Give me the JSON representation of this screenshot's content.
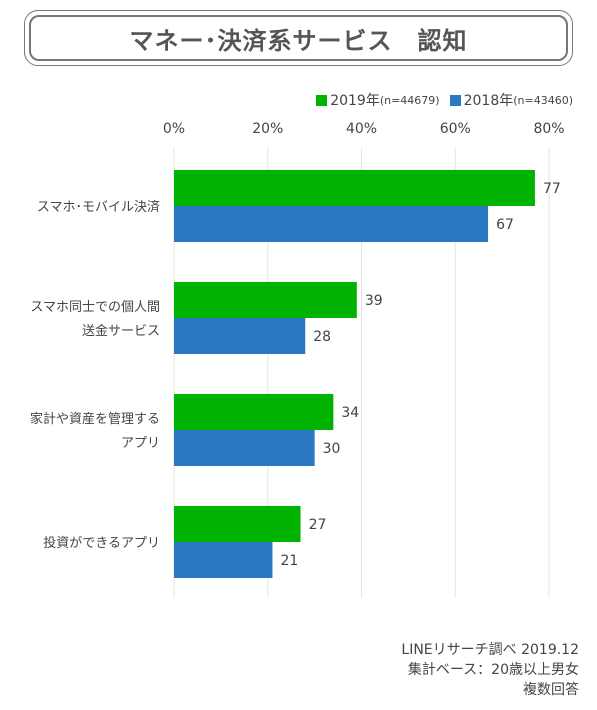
{
  "title": "マネー･決済系サービス　認知",
  "legend": [
    {
      "label": "2019年",
      "n": "(n=44679)",
      "color": "#00b300"
    },
    {
      "label": "2018年",
      "n": "(n=43460)",
      "color": "#2b78c2"
    }
  ],
  "footer": {
    "line1": "LINEリサーチ調べ 2019.12",
    "line2": "集計ベース：20歳以上男女",
    "line3": "複数回答"
  },
  "chart_data": {
    "type": "bar",
    "orientation": "horizontal",
    "xlim": [
      0,
      80
    ],
    "ticks": [
      0,
      20,
      40,
      60,
      80
    ],
    "tick_labels": [
      "0%",
      "20%",
      "40%",
      "60%",
      "80%"
    ],
    "categories": [
      [
        "スマホ･モバイル決済"
      ],
      [
        "スマホ同士での個人間",
        "送金サービス"
      ],
      [
        "家計や資産を管理する",
        "アプリ"
      ],
      [
        "投資ができるアプリ"
      ]
    ],
    "series": [
      {
        "name": "2019年",
        "color": "#00b300",
        "values": [
          77,
          39,
          34,
          27
        ]
      },
      {
        "name": "2018年",
        "color": "#2b78c2",
        "values": [
          67,
          28,
          30,
          21
        ]
      }
    ],
    "grid": true,
    "legend_position": "top-right"
  }
}
